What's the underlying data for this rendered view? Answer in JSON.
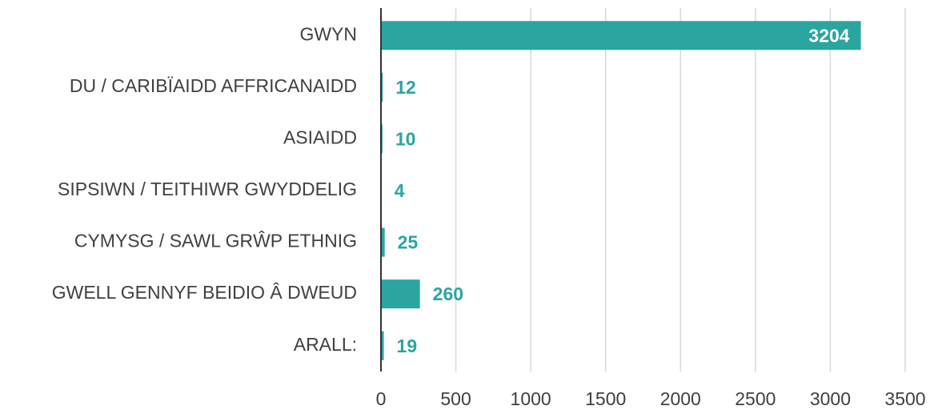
{
  "chart_data": {
    "type": "barh",
    "categories": [
      "GWYN",
      "DU / CARIBÏAIDD AFFRICANAIDD",
      "ASIAIDD",
      "SIPSIWN  / TEITHIWR GWYDDELIG",
      "CYMYSG / SAWL GRŴP ETHNIG",
      "GWELL GENNYF BEIDIO Â DWEUD",
      "ARALL:"
    ],
    "values": [
      3204,
      12,
      10,
      4,
      25,
      260,
      19
    ],
    "color": "#2aa5a0",
    "xlim": [
      0,
      3500
    ],
    "xticks": [
      0,
      500,
      1000,
      1500,
      2000,
      2500,
      3000,
      3500
    ],
    "grid": true
  }
}
